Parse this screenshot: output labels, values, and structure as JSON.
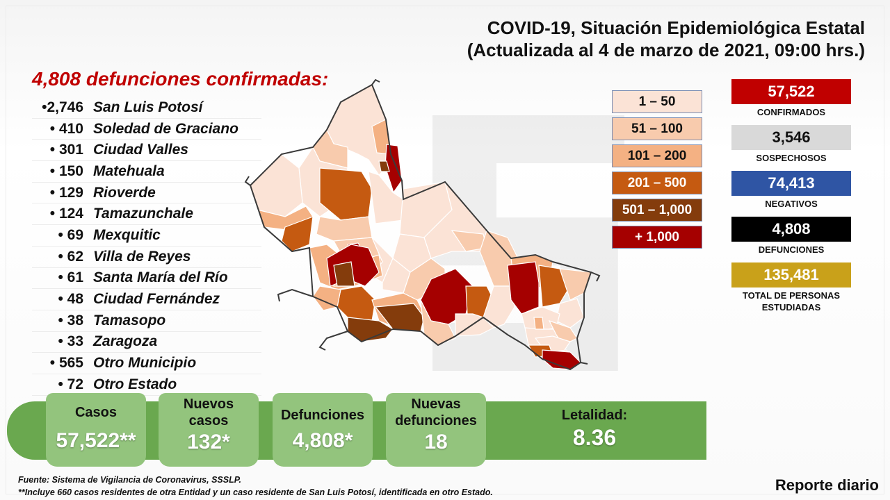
{
  "title": {
    "line1": "COVID-19, Situación Epidemiológica Estatal",
    "line2": "(Actualizada al 4 de marzo de 2021, 09:00 hrs.)"
  },
  "deaths_title": "4,808 defunciones confirmadas:",
  "municipalities": [
    {
      "count": "•2,746",
      "name": "San Luis Potosí"
    },
    {
      "count": "• 410",
      "name": "Soledad de Graciano"
    },
    {
      "count": "• 301",
      "name": "Ciudad Valles"
    },
    {
      "count": "• 150",
      "name": "Matehuala"
    },
    {
      "count": "• 129",
      "name": "Rioverde"
    },
    {
      "count": "• 124",
      "name": "Tamazunchale"
    },
    {
      "count": "• 69",
      "name": "Mexquitic"
    },
    {
      "count": "• 62",
      "name": "Villa de Reyes"
    },
    {
      "count": "• 61",
      "name": "Santa María del Río"
    },
    {
      "count": "• 48",
      "name": "Ciudad Fernández"
    },
    {
      "count": "• 38",
      "name": "Tamasopo"
    },
    {
      "count": "• 33",
      "name": "Zaragoza"
    },
    {
      "count": "• 565",
      "name": "Otro Municipio"
    },
    {
      "count": "• 72",
      "name": "Otro Estado"
    }
  ],
  "legend": [
    {
      "label": "1 – 50",
      "color": "#fbe3d6",
      "text": "#111111"
    },
    {
      "label": "51 – 100",
      "color": "#f8cbad",
      "text": "#111111"
    },
    {
      "label": "101 – 200",
      "color": "#f4b183",
      "text": "#111111"
    },
    {
      "label": "201 – 500",
      "color": "#c55a11",
      "text": "#ffffff"
    },
    {
      "label": "501 – 1,000",
      "color": "#843c0c",
      "text": "#ffffff"
    },
    {
      "label": "+ 1,000",
      "color": "#a50000",
      "text": "#ffffff"
    }
  ],
  "stats": [
    {
      "value": "57,522",
      "label": "CONFIRMADOS",
      "color": "#c00000",
      "text": "#ffffff"
    },
    {
      "value": "3,546",
      "label": "SOSPECHOSOS",
      "color": "#d9d9d9",
      "text": "#111111"
    },
    {
      "value": "74,413",
      "label": "NEGATIVOS",
      "color": "#2f55a4",
      "text": "#ffffff"
    },
    {
      "value": "4,808",
      "label": "DEFUNCIONES",
      "color": "#000000",
      "text": "#ffffff"
    },
    {
      "value": "135,481",
      "label": "TOTAL DE PERSONAS ESTUDIADAS",
      "color": "#c9a11a",
      "text": "#ffffff"
    }
  ],
  "summary": {
    "cases_label": "Casos",
    "cases_value": "57,522**",
    "new_cases_label": "Nuevos casos",
    "new_cases_value": "132*",
    "deaths_label": "Defunciones",
    "deaths_value": "4,808*",
    "new_deaths_label": "Nuevas defunciones",
    "new_deaths_value": "18",
    "lethality_label": "Letalidad:",
    "lethality_value": "8.36"
  },
  "footnote": {
    "source": "Fuente: Sistema de Vigilancia de Coronavirus, SSSLP.",
    "note": "**Incluye 660 casos residentes de otra Entidad y un caso residente de San Luis Potosí, identificada en otro Estado."
  },
  "daily_report": "Reporte diario"
}
